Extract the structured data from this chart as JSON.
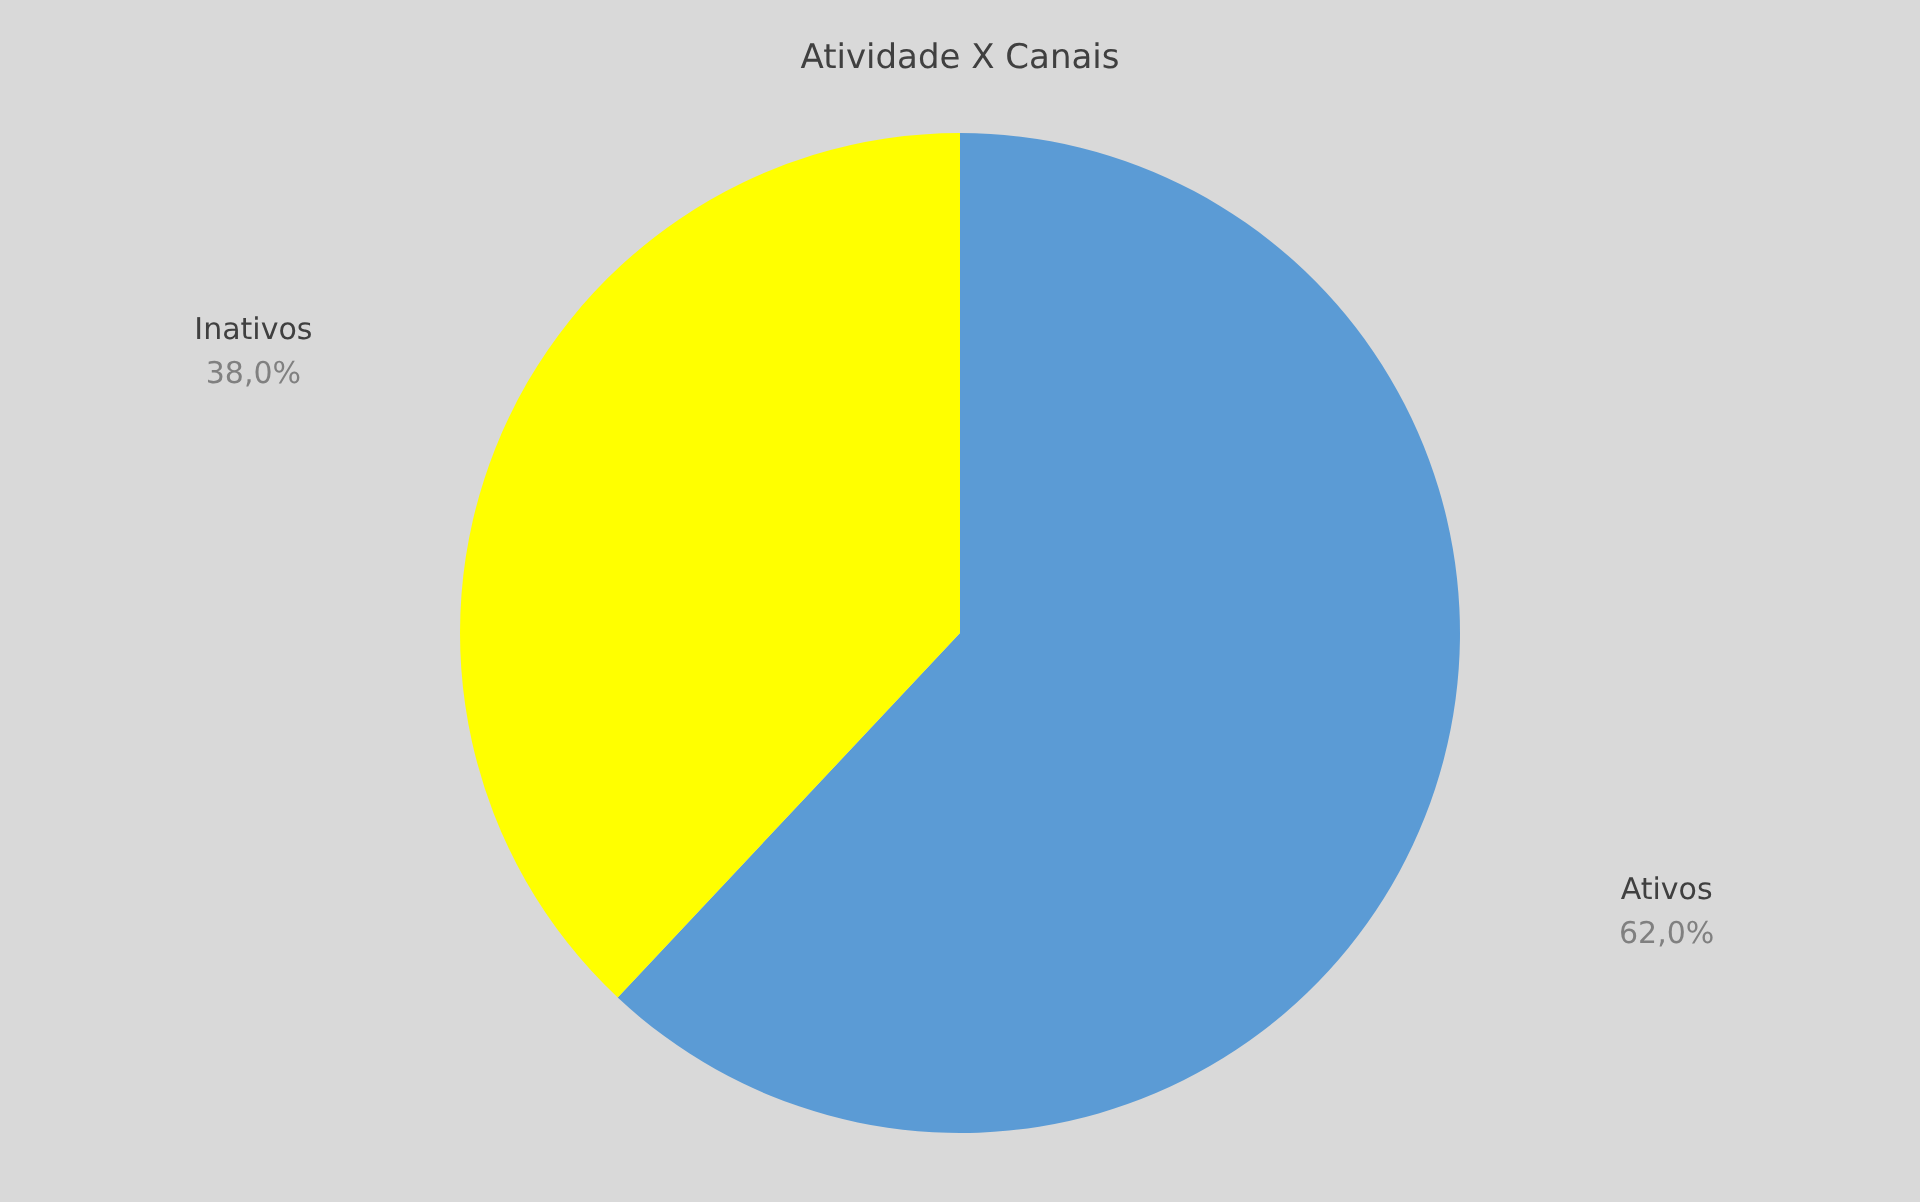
{
  "chart_data": {
    "type": "pie",
    "title": "Atividade X Canais",
    "categories": [
      "Ativos",
      "Inativos"
    ],
    "values": [
      62,
      38
    ],
    "value_labels": [
      "62,0%",
      "38,0%"
    ],
    "colors": [
      "#5b9bd5",
      "#ffff00"
    ],
    "legend": false
  }
}
